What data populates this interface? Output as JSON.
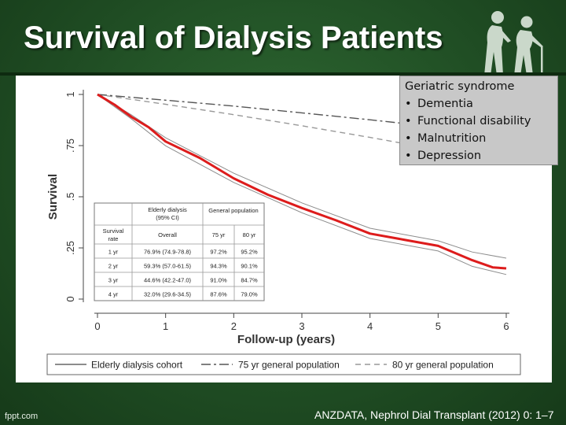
{
  "slide": {
    "title": "Survival of Dialysis Patients",
    "footer_left": "fppt.com",
    "footer_right": "ANZDATA, Nephrol Dial Transplant (2012) 0: 1–7"
  },
  "infobox": {
    "heading": "Geriatric syndrome",
    "bullet": "•",
    "items": [
      "Dementia",
      "Functional disability",
      "Malnutrition",
      "Depression"
    ]
  },
  "chart_data": {
    "type": "line",
    "xlabel": "Follow-up (years)",
    "ylabel": "Survival",
    "xlim": [
      0,
      6
    ],
    "ylim": [
      0,
      1
    ],
    "x_ticks": [
      "0",
      "1",
      "2",
      "3",
      "4",
      "5",
      "6"
    ],
    "y_ticks": [
      "0",
      ".25",
      ".5",
      ".75",
      "1"
    ],
    "series": [
      {
        "name": "Elderly dialysis cohort",
        "color": "#dd1c1c",
        "x": [
          0,
          0.25,
          0.5,
          0.75,
          1,
          1.5,
          2,
          2.5,
          3,
          3.5,
          4,
          4.5,
          5,
          5.5,
          5.8,
          6
        ],
        "y": [
          1.0,
          0.95,
          0.89,
          0.84,
          0.77,
          0.69,
          0.59,
          0.51,
          0.445,
          0.385,
          0.32,
          0.29,
          0.26,
          0.19,
          0.155,
          0.15
        ]
      },
      {
        "name": "75 yr general population",
        "color": "#555555",
        "x": [
          0,
          1,
          2,
          3,
          4,
          5,
          6
        ],
        "y": [
          1.0,
          0.972,
          0.943,
          0.91,
          0.876,
          0.84,
          0.8
        ]
      },
      {
        "name": "80 yr general population",
        "color": "#999999",
        "x": [
          0,
          1,
          2,
          3,
          4,
          5,
          6
        ],
        "y": [
          1.0,
          0.952,
          0.901,
          0.847,
          0.79,
          0.73,
          0.67
        ]
      }
    ],
    "ci_band": {
      "x": [
        0,
        0.5,
        1,
        2,
        3,
        4,
        5,
        5.5,
        6
      ],
      "upper": [
        1.0,
        0.9,
        0.788,
        0.615,
        0.47,
        0.346,
        0.285,
        0.23,
        0.2
      ],
      "lower": [
        1.0,
        0.88,
        0.749,
        0.57,
        0.422,
        0.296,
        0.235,
        0.16,
        0.12
      ]
    },
    "table": {
      "group_headers": [
        "Elderly dialysis\n(95% CI)",
        "General population"
      ],
      "columns": [
        "Survival\nrate",
        "Overall",
        "75 yr",
        "80 yr"
      ],
      "rows": [
        [
          "1 yr",
          "76.9% (74.9-78.8)",
          "97.2%",
          "95.2%"
        ],
        [
          "2 yr",
          "59.3% (57.0-61.5)",
          "94.3%",
          "90.1%"
        ],
        [
          "3 yr",
          "44.6% (42.2-47.0)",
          "91.0%",
          "84.7%"
        ],
        [
          "4 yr",
          "32.0% (29.6-34.5)",
          "87.6%",
          "79.0%"
        ]
      ]
    },
    "legend_position": "bottom"
  }
}
